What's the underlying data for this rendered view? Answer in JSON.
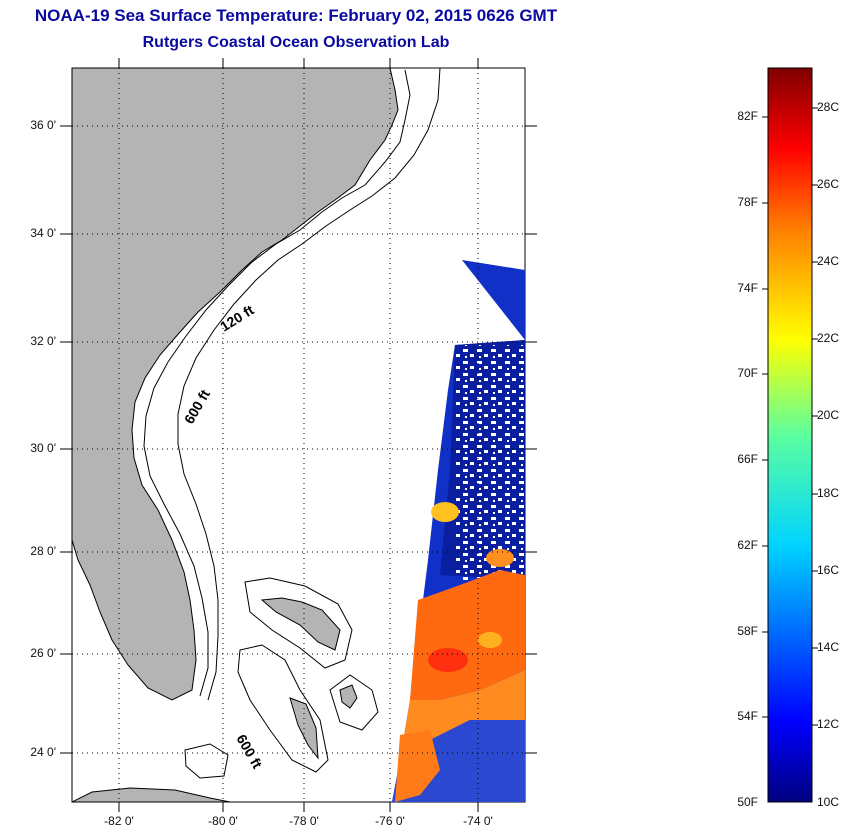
{
  "header": {
    "title": "NOAA-19 Sea Surface Temperature:  February 02, 2015 0626 GMT",
    "subtitle": "Rutgers Coastal Ocean Observation Lab"
  },
  "map": {
    "lat_labels": [
      "36 0'",
      "34 0'",
      "32 0'",
      "30 0'",
      "28 0'",
      "26 0'",
      "24 0'"
    ],
    "lon_labels": [
      "-82 0'",
      "-80 0'",
      "-78 0'",
      "-76 0'",
      "-74 0'"
    ],
    "contour_labels": [
      "120 ft",
      "600 ft",
      "600 ft"
    ],
    "land_color": "#b4b4b4"
  },
  "colorbar": {
    "fahrenheit": [
      "82F",
      "78F",
      "74F",
      "70F",
      "66F",
      "62F",
      "58F",
      "54F",
      "50F"
    ],
    "celsius": [
      "28C",
      "26C",
      "24C",
      "22C",
      "20C",
      "18C",
      "16C",
      "14C",
      "12C",
      "10C"
    ]
  }
}
